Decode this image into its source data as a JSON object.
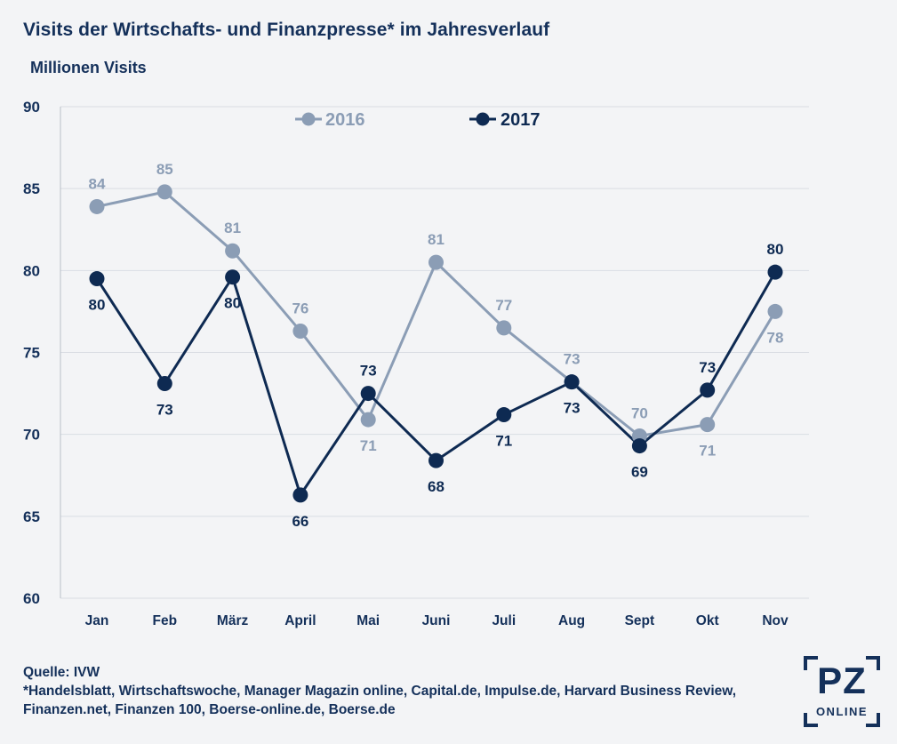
{
  "header": {
    "title": "Visits der Wirtschafts- und Finanzpresse* im Jahresverlauf",
    "unit": "Millionen Visits"
  },
  "footer": {
    "source": "Quelle: IVW",
    "note_line1": "*Handelsblatt, Wirtschaftswoche, Manager Magazin online, Capital.de, Impulse.de, Harvard Business Review,",
    "note_line2": "Finanzen.net, Finanzen 100, Boerse-online.de, Boerse.de"
  },
  "logo": {
    "main": "PZ",
    "sub": "ONLINE"
  },
  "colors": {
    "series_2016": "#8b9db5",
    "series_2017": "#0e2a52",
    "text": "#14305a",
    "grid": "#d9dde3"
  },
  "chart_data": {
    "type": "line",
    "categories": [
      "Jan",
      "Feb",
      "März",
      "April",
      "Mai",
      "Juni",
      "Juli",
      "Aug",
      "Sept",
      "Okt",
      "Nov"
    ],
    "ylim": [
      60,
      90
    ],
    "yticks": [
      60,
      65,
      70,
      75,
      80,
      85,
      90
    ],
    "grid": true,
    "legend_position": "top-center",
    "series": [
      {
        "name": "2016",
        "values": [
          83.9,
          84.8,
          81.2,
          76.3,
          70.9,
          80.5,
          76.5,
          73.2,
          69.9,
          70.6,
          77.5
        ],
        "labels": [
          "84",
          "85",
          "81",
          "76",
          "71",
          "81",
          "77",
          "73",
          "70",
          "71",
          "78"
        ],
        "label_pos": [
          "above",
          "above",
          "above",
          "above",
          "below",
          "above",
          "above",
          "above",
          "above",
          "below",
          "below"
        ]
      },
      {
        "name": "2017",
        "values": [
          79.5,
          73.1,
          79.6,
          66.3,
          72.5,
          68.4,
          71.2,
          73.2,
          69.3,
          72.7,
          79.9
        ],
        "labels": [
          "80",
          "73",
          "80",
          "66",
          "73",
          "68",
          "71",
          "73",
          "69",
          "73",
          "80"
        ],
        "label_pos": [
          "below",
          "below",
          "below",
          "below",
          "above",
          "below",
          "below",
          "below",
          "below",
          "above",
          "above"
        ]
      }
    ]
  }
}
